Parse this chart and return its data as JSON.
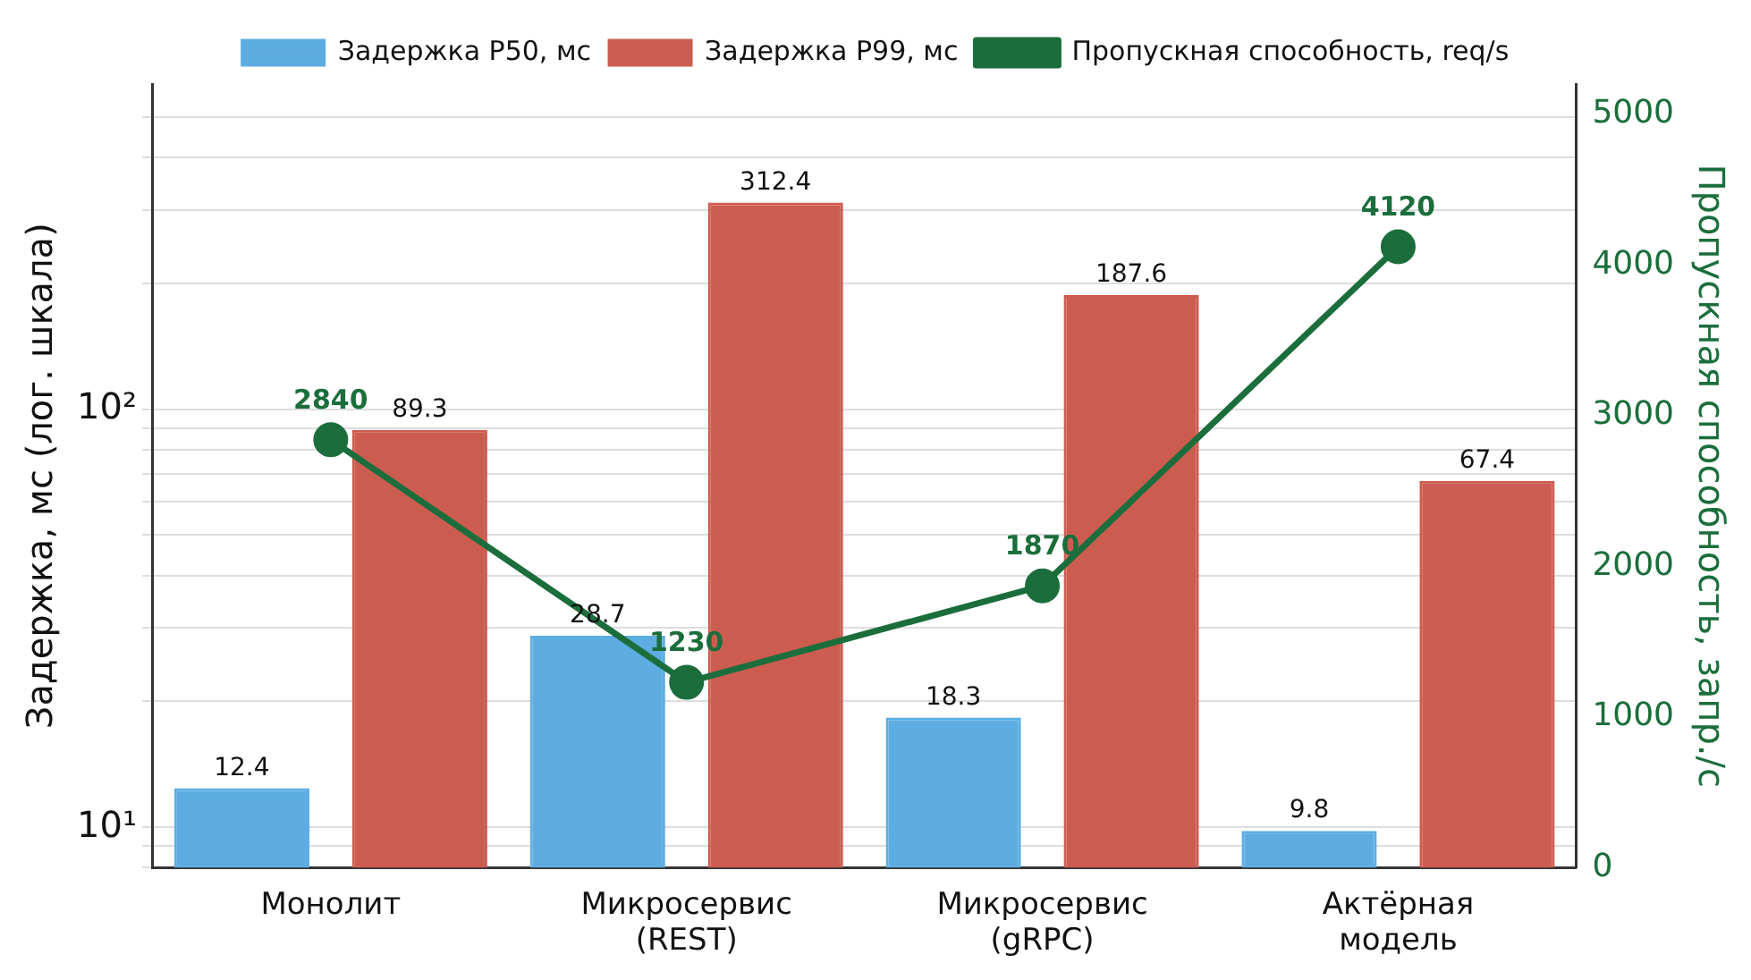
{
  "chart_data": {
    "type": "bar",
    "categories": [
      "Монолит",
      "Микросервис (REST)",
      "Микросервис (gRPC)",
      "Актёрная модель"
    ],
    "series": [
      {
        "name": "Задержка P50, мс",
        "color": "#5dade2",
        "values": [
          12.4,
          28.7,
          18.3,
          9.8
        ]
      },
      {
        "name": "Задержка P99, мс",
        "color": "#cd5c50",
        "values": [
          89.3,
          312.4,
          187.6,
          67.4
        ]
      },
      {
        "name": "Пропускная способность, req/s",
        "type": "line",
        "axis": "y2",
        "color": "#1b6e3c",
        "values": [
          2840,
          1230,
          1870,
          4120
        ]
      }
    ],
    "ylabel": "Задержка, мс (лог. шкала)",
    "y2label": "Пропускная способность, запр./с",
    "log": "y",
    "ylim": [
      8,
      600
    ],
    "yticks": [
      {
        "value": 8,
        "label": null
      },
      {
        "value": 9,
        "label": null
      },
      {
        "value": 10,
        "label": "10¹"
      },
      {
        "value": 20,
        "label": null
      },
      {
        "value": 30,
        "label": null
      },
      {
        "value": 40,
        "label": null
      },
      {
        "value": 50,
        "label": null
      },
      {
        "value": 60,
        "label": null
      },
      {
        "value": 70,
        "label": null
      },
      {
        "value": 80,
        "label": null
      },
      {
        "value": 90,
        "label": null
      },
      {
        "value": 100,
        "label": "10²"
      },
      {
        "value": 200,
        "label": null
      },
      {
        "value": 300,
        "label": null
      },
      {
        "value": 400,
        "label": null
      },
      {
        "value": 500,
        "label": null
      }
    ],
    "y2lim": [
      0,
      5200
    ],
    "y2ticks": [
      0,
      1000,
      2000,
      3000,
      4000,
      5000
    ],
    "grid": "y",
    "legend": "top",
    "marker": "circle",
    "data_labels": true
  }
}
